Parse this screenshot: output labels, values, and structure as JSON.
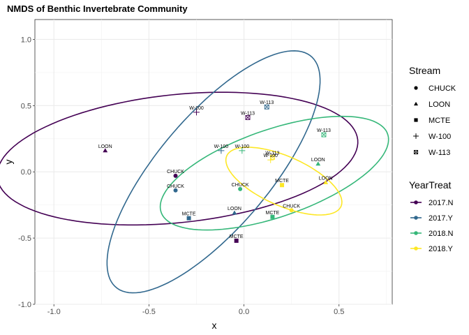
{
  "chart_data": {
    "type": "scatter",
    "title": "NMDS of Benthic Invertebrate Community",
    "xlabel": "x",
    "ylabel": "y",
    "xlim": [
      -1.1,
      0.78
    ],
    "ylim": [
      -1.0,
      1.15
    ],
    "xticks": [
      -1.0,
      -0.5,
      0.0,
      0.5
    ],
    "xtick_labels": [
      "-1.0",
      "-0.5",
      "0.0",
      "0.5"
    ],
    "yticks": [
      -1.0,
      -0.5,
      0.0,
      0.5,
      1.0
    ],
    "ytick_labels": [
      "-1.0",
      "-0.5",
      "0.0",
      "0.5",
      "1.0"
    ],
    "grid": true,
    "legend_placement": "right",
    "colors": {
      "2017.N": "#440154",
      "2017.Y": "#31688e",
      "2018.N": "#35b779",
      "2018.Y": "#fde725"
    },
    "points": [
      {
        "stream": "CHUCK",
        "group": "2017.N",
        "x": -0.36,
        "y": -0.03
      },
      {
        "stream": "LOON",
        "group": "2017.N",
        "x": -0.73,
        "y": 0.16
      },
      {
        "stream": "MCTE",
        "group": "2017.N",
        "x": -0.04,
        "y": -0.52
      },
      {
        "stream": "W-100",
        "group": "2017.N",
        "x": -0.25,
        "y": 0.45
      },
      {
        "stream": "W-113",
        "group": "2017.N",
        "x": 0.02,
        "y": 0.41
      },
      {
        "stream": "CHUCK",
        "group": "2017.Y",
        "x": -0.36,
        "y": -0.14
      },
      {
        "stream": "LOON",
        "group": "2017.Y",
        "x": -0.05,
        "y": -0.31
      },
      {
        "stream": "MCTE",
        "group": "2017.Y",
        "x": -0.29,
        "y": -0.35
      },
      {
        "stream": "W-100",
        "group": "2017.Y",
        "x": -0.12,
        "y": 0.16
      },
      {
        "stream": "W-113",
        "group": "2017.Y",
        "x": 0.12,
        "y": 0.49
      },
      {
        "stream": "CHUCK",
        "group": "2018.N",
        "x": -0.02,
        "y": -0.13
      },
      {
        "stream": "LOON",
        "group": "2018.N",
        "x": 0.39,
        "y": 0.06
      },
      {
        "stream": "MCTE",
        "group": "2018.N",
        "x": 0.15,
        "y": -0.34
      },
      {
        "stream": "W-100",
        "group": "2018.N",
        "x": -0.01,
        "y": 0.16
      },
      {
        "stream": "W-113",
        "group": "2018.N",
        "x": 0.42,
        "y": 0.28
      },
      {
        "stream": "CHUCK",
        "group": "2018.Y",
        "x": 0.25,
        "y": -0.29
      },
      {
        "stream": "LOON",
        "group": "2018.Y",
        "x": 0.43,
        "y": -0.08
      },
      {
        "stream": "MCTE",
        "group": "2018.Y",
        "x": 0.2,
        "y": -0.1
      },
      {
        "stream": "W-100",
        "group": "2018.Y",
        "x": 0.14,
        "y": 0.09
      },
      {
        "stream": "W-113",
        "group": "2018.Y",
        "x": 0.15,
        "y": 0.11
      }
    ],
    "ellipses": [
      {
        "group": "2017.N",
        "cx": -0.35,
        "cy": 0.1,
        "rx": 0.48,
        "ry": 0.96,
        "angle_deg": -80
      },
      {
        "group": "2017.Y",
        "cx": -0.16,
        "cy": 0.0,
        "rx": 0.33,
        "ry": 1.02,
        "angle_deg": -28
      },
      {
        "group": "2018.N",
        "cx": 0.16,
        "cy": -0.01,
        "rx": 0.67,
        "ry": 0.31,
        "angle_deg": 30
      },
      {
        "group": "2018.Y",
        "cx": 0.21,
        "cy": -0.07,
        "rx": 0.36,
        "ry": 0.17,
        "angle_deg": -37
      }
    ]
  },
  "legend": {
    "stream": {
      "title": "Stream",
      "items": [
        {
          "label": "CHUCK",
          "shape": "circle"
        },
        {
          "label": "LOON",
          "shape": "triangle"
        },
        {
          "label": "MCTE",
          "shape": "square"
        },
        {
          "label": "W-100",
          "shape": "plus"
        },
        {
          "label": "W-113",
          "shape": "boxed-x"
        }
      ]
    },
    "yeartreat": {
      "title": "YearTreat",
      "items": [
        "2017.N",
        "2017.Y",
        "2018.N",
        "2018.Y"
      ]
    }
  }
}
